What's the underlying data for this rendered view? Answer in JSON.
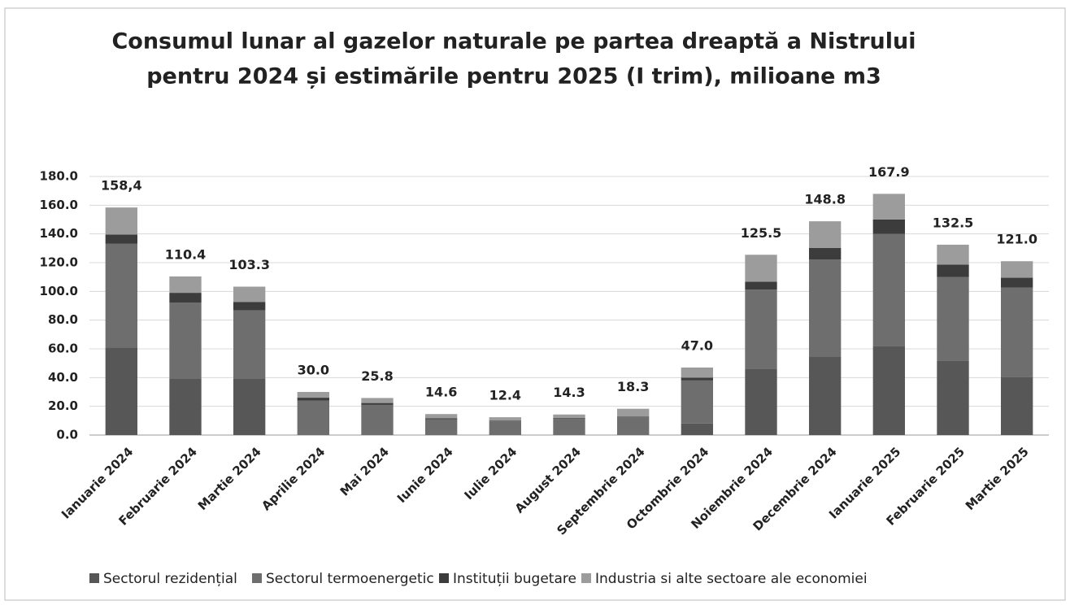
{
  "chart_data": {
    "type": "stacked_bar",
    "title": [
      "Consumul lunar al gazelor naturale pe partea dreaptă a Nistrului",
      "pentru 2024 și estimările pentru  2025 (I trim), milioane m3"
    ],
    "categories": [
      "Ianuarie 2024",
      "Februarie 2024",
      "Martie 2024",
      "Aprilie 2024",
      "Mai 2024",
      "Iunie 2024",
      "Iulie 2024",
      "August 2024",
      "Septembrie 2024",
      "Octombrie 2024",
      "Noiembrie 2024",
      "Decembrie 2024",
      "Ianuarie 2025",
      "Februarie 2025",
      "Martie 2025"
    ],
    "series": [
      {
        "name": "Sectorul rezidențial",
        "color": "#575757",
        "values": [
          60.9,
          39.3,
          39.4,
          0,
          0,
          0,
          0,
          0,
          0,
          8.0,
          46.2,
          54.8,
          62.1,
          51.9,
          40.6
        ]
      },
      {
        "name": "Sectorul termoenergetic",
        "color": "#6e6e6e",
        "values": [
          72.4,
          52.8,
          47.4,
          24.0,
          21.0,
          11.0,
          9.5,
          11.3,
          12.3,
          30.0,
          55.0,
          67.3,
          78.0,
          58.2,
          62.1
        ]
      },
      {
        "name": "Instituții bugetare",
        "color": "#3c3c3c",
        "values": [
          6.3,
          6.9,
          5.9,
          2.0,
          1.3,
          0.6,
          0.4,
          0.5,
          0.5,
          2.0,
          5.6,
          8.1,
          10.0,
          8.5,
          6.8
        ]
      },
      {
        "name": "Industria si alte sectoare ale economiei",
        "color": "#9c9c9c",
        "values": [
          18.8,
          11.4,
          10.6,
          4.0,
          3.5,
          3.0,
          2.5,
          2.5,
          5.5,
          7.0,
          18.7,
          18.6,
          17.8,
          13.9,
          11.5
        ]
      }
    ],
    "total_labels": [
      "158,4",
      "110.4",
      "103.3",
      "30.0",
      "25.8",
      "14.6",
      "12.4",
      "14.3",
      "18.3",
      "47.0",
      "125.5",
      "148.8",
      "167.9",
      "132.5",
      "121.0"
    ],
    "ylim": [
      0,
      180
    ],
    "yticks": [
      {
        "value": 0,
        "label": "0.0"
      },
      {
        "value": 20,
        "label": "20.0"
      },
      {
        "value": 40,
        "label": "40.0"
      },
      {
        "value": 60,
        "label": "60.0"
      },
      {
        "value": 80,
        "label": "80.0"
      },
      {
        "value": 100,
        "label": "100.0"
      },
      {
        "value": 120,
        "label": "120.0"
      },
      {
        "value": 140,
        "label": "140.0"
      },
      {
        "value": 160,
        "label": "160.0"
      },
      {
        "value": 180,
        "label": "180.0"
      }
    ],
    "grid": true
  }
}
